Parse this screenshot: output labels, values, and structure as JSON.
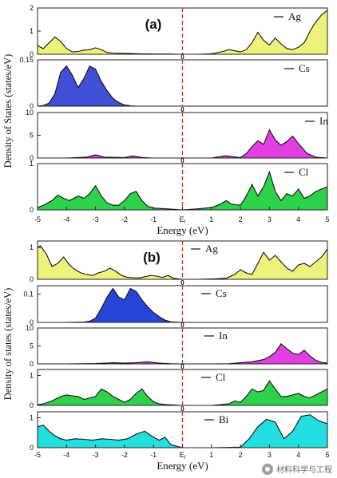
{
  "chart_data": [
    {
      "type": "area",
      "figure_label": "(a)",
      "ylabel": "Density of States (states/eV)",
      "xlabel": "Energy (eV)",
      "xlim": [
        -5,
        5
      ],
      "x_ticks": [
        "-5",
        "-4",
        "-3",
        "-2",
        "-1",
        "Ef",
        "1",
        "2",
        "3",
        "4",
        "5"
      ],
      "fermi_label": "0",
      "panels": [
        {
          "name": "Ag",
          "color": "#eef27a",
          "ylim": [
            0,
            2
          ],
          "y_ticks": [
            "0",
            "1",
            "2"
          ],
          "x": [
            -5.0,
            -4.9,
            -4.8,
            -4.6,
            -4.4,
            -4.2,
            -4.0,
            -3.8,
            -3.6,
            -3.4,
            -3.2,
            -3.0,
            -2.8,
            -2.6,
            -2.4,
            -2.0,
            -1.5,
            -1.0,
            -0.5,
            0.0,
            0.5,
            1.0,
            1.4,
            1.6,
            1.8,
            2.0,
            2.2,
            2.4,
            2.6,
            2.8,
            3.0,
            3.2,
            3.4,
            3.6,
            3.8,
            4.0,
            4.2,
            4.4,
            4.6,
            4.8,
            5.0
          ],
          "y": [
            0.4,
            0.3,
            0.25,
            0.5,
            0.75,
            0.55,
            0.25,
            0.1,
            0.12,
            0.18,
            0.2,
            0.28,
            0.2,
            0.08,
            0.05,
            0.04,
            0.02,
            0.01,
            0.01,
            0.0,
            0.0,
            0.02,
            0.12,
            0.2,
            0.15,
            0.1,
            0.2,
            0.5,
            0.95,
            0.6,
            0.4,
            0.7,
            0.45,
            0.25,
            0.2,
            0.3,
            0.5,
            1.0,
            1.4,
            1.7,
            1.9
          ]
        },
        {
          "name": "Cs",
          "color": "#3f4fd6",
          "ylim": [
            0,
            0.15
          ],
          "y_ticks": [
            "0",
            "0.15"
          ],
          "x": [
            -5.0,
            -4.8,
            -4.6,
            -4.4,
            -4.2,
            -4.0,
            -3.8,
            -3.6,
            -3.4,
            -3.2,
            -3.0,
            -2.8,
            -2.6,
            -2.4,
            -2.2,
            -2.0,
            -1.8,
            -1.6,
            -1.0,
            0.0,
            1.0,
            2.0,
            3.0,
            4.0,
            5.0
          ],
          "y": [
            0.0,
            0.002,
            0.01,
            0.04,
            0.11,
            0.13,
            0.1,
            0.06,
            0.09,
            0.13,
            0.12,
            0.08,
            0.05,
            0.025,
            0.012,
            0.004,
            0.001,
            0.0,
            0.0,
            0.0,
            0.0,
            0.0,
            0.0,
            0.0,
            0.0
          ]
        },
        {
          "name": "In",
          "color": "#e23ee2",
          "ylim": [
            0,
            10
          ],
          "y_ticks": [
            "0",
            "5",
            "10"
          ],
          "x": [
            -5.0,
            -4.0,
            -3.3,
            -3.0,
            -2.7,
            -2.0,
            -1.7,
            -1.4,
            -1.0,
            0.0,
            1.0,
            1.3,
            1.5,
            1.7,
            2.0,
            2.2,
            2.4,
            2.6,
            2.8,
            3.0,
            3.2,
            3.4,
            3.6,
            3.8,
            4.0,
            4.3,
            4.6,
            5.0
          ],
          "y": [
            0.0,
            0.0,
            0.2,
            0.7,
            0.2,
            0.1,
            0.45,
            0.1,
            0.0,
            0.0,
            0.0,
            0.3,
            0.5,
            0.3,
            0.1,
            1.0,
            2.5,
            3.8,
            3.0,
            6.2,
            4.0,
            2.8,
            3.6,
            4.8,
            3.2,
            1.0,
            0.2,
            0.0
          ]
        },
        {
          "name": "Cl",
          "color": "#2ed24a",
          "ylim": [
            0,
            1
          ],
          "y_ticks": [
            "0",
            "1"
          ],
          "x": [
            -5.0,
            -4.8,
            -4.5,
            -4.3,
            -4.1,
            -3.9,
            -3.6,
            -3.4,
            -3.2,
            -3.0,
            -2.8,
            -2.6,
            -2.4,
            -2.2,
            -2.0,
            -1.8,
            -1.6,
            -1.4,
            -1.2,
            -1.0,
            -0.5,
            0.0,
            0.5,
            1.0,
            1.3,
            1.5,
            1.7,
            2.0,
            2.2,
            2.4,
            2.6,
            2.8,
            3.0,
            3.2,
            3.4,
            3.6,
            3.8,
            4.0,
            4.2,
            4.4,
            4.6,
            4.8,
            5.0
          ],
          "y": [
            0.05,
            0.1,
            0.2,
            0.32,
            0.25,
            0.2,
            0.3,
            0.25,
            0.35,
            0.52,
            0.3,
            0.15,
            0.1,
            0.1,
            0.2,
            0.35,
            0.4,
            0.2,
            0.08,
            0.04,
            0.02,
            0.0,
            0.02,
            0.05,
            0.12,
            0.2,
            0.12,
            0.1,
            0.3,
            0.55,
            0.3,
            0.5,
            0.82,
            0.4,
            0.2,
            0.35,
            0.3,
            0.45,
            0.25,
            0.3,
            0.4,
            0.45,
            0.5
          ]
        }
      ]
    },
    {
      "type": "area",
      "figure_label": "(b)",
      "ylabel": "Density of states (states/eV)",
      "xlabel": "Energy (eV)",
      "xlim": [
        -5,
        5
      ],
      "x_ticks": [
        "-5",
        "-4",
        "-3",
        "-2",
        "-1",
        "Ef",
        "1",
        "2",
        "3",
        "4",
        "5"
      ],
      "fermi_label": "0",
      "panels": [
        {
          "name": "Ag",
          "color": "#eef27a",
          "ylim": [
            0,
            1.2
          ],
          "y_ticks": [
            "0",
            "1"
          ],
          "x": [
            -5.0,
            -4.9,
            -4.7,
            -4.5,
            -4.3,
            -4.1,
            -3.9,
            -3.7,
            -3.5,
            -3.3,
            -3.1,
            -2.9,
            -2.7,
            -2.5,
            -2.3,
            -2.1,
            -1.9,
            -1.7,
            -1.5,
            -1.3,
            -1.1,
            -0.9,
            -0.7,
            -0.5,
            -0.3,
            0.0,
            0.5,
            1.0,
            1.5,
            1.8,
            2.0,
            2.2,
            2.4,
            2.6,
            2.8,
            3.0,
            3.2,
            3.4,
            3.6,
            3.8,
            4.0,
            4.2,
            4.4,
            4.6,
            4.8,
            5.0
          ],
          "y": [
            1.0,
            1.05,
            0.8,
            0.4,
            0.5,
            0.7,
            0.45,
            0.3,
            0.2,
            0.15,
            0.12,
            0.2,
            0.25,
            0.35,
            0.25,
            0.12,
            0.06,
            0.05,
            0.04,
            0.08,
            0.12,
            0.1,
            0.06,
            0.12,
            0.03,
            0.0,
            0.0,
            0.01,
            0.03,
            0.15,
            0.3,
            0.2,
            0.15,
            0.5,
            0.85,
            0.6,
            0.75,
            0.55,
            0.35,
            0.25,
            0.45,
            0.5,
            0.4,
            0.55,
            0.7,
            0.95
          ]
        },
        {
          "name": "Cs",
          "color": "#2445d6",
          "ylim": [
            0,
            0.13
          ],
          "y_ticks": [
            "0",
            "0.1"
          ],
          "x": [
            -5.0,
            -4.0,
            -3.4,
            -3.2,
            -3.0,
            -2.8,
            -2.6,
            -2.4,
            -2.2,
            -2.0,
            -1.8,
            -1.6,
            -1.4,
            -1.2,
            -1.0,
            -0.8,
            -0.6,
            -0.4,
            0.0,
            1.0,
            2.0,
            3.0,
            4.0,
            5.0
          ],
          "y": [
            0.0,
            0.0,
            0.001,
            0.004,
            0.015,
            0.05,
            0.09,
            0.12,
            0.09,
            0.08,
            0.12,
            0.11,
            0.08,
            0.055,
            0.035,
            0.02,
            0.008,
            0.002,
            0.0,
            0.0,
            0.0,
            0.0,
            0.0,
            0.0
          ]
        },
        {
          "name": "In",
          "color": "#e23ee2",
          "ylim": [
            0,
            10
          ],
          "y_ticks": [
            "0",
            "5",
            "10"
          ],
          "x": [
            -5.0,
            -4.0,
            -3.0,
            -2.4,
            -2.0,
            -1.6,
            -1.2,
            -0.8,
            -0.4,
            0.0,
            1.0,
            1.6,
            2.0,
            2.4,
            2.8,
            3.0,
            3.2,
            3.4,
            3.6,
            3.8,
            4.0,
            4.2,
            4.4,
            4.6,
            4.8,
            5.0
          ],
          "y": [
            0.0,
            0.0,
            0.1,
            0.3,
            0.2,
            0.3,
            0.6,
            0.2,
            0.05,
            0.0,
            0.0,
            0.05,
            0.3,
            0.6,
            1.2,
            2.0,
            3.2,
            5.6,
            4.2,
            3.0,
            2.6,
            3.8,
            2.2,
            1.0,
            0.4,
            0.2
          ]
        },
        {
          "name": "Cl",
          "color": "#2ed24a",
          "ylim": [
            0,
            1.2
          ],
          "y_ticks": [
            "0",
            "1"
          ],
          "x": [
            -5.0,
            -4.8,
            -4.5,
            -4.2,
            -4.0,
            -3.8,
            -3.6,
            -3.4,
            -3.2,
            -3.0,
            -2.8,
            -2.6,
            -2.4,
            -2.2,
            -2.0,
            -1.8,
            -1.6,
            -1.4,
            -1.2,
            -1.0,
            -0.8,
            -0.6,
            -0.4,
            0.0,
            1.0,
            1.6,
            1.8,
            2.0,
            2.2,
            2.4,
            2.6,
            2.8,
            3.0,
            3.2,
            3.4,
            3.6,
            3.8,
            4.0,
            4.2,
            4.4,
            4.6,
            4.8,
            5.0
          ],
          "y": [
            0.02,
            0.05,
            0.15,
            0.3,
            0.35,
            0.32,
            0.3,
            0.2,
            0.25,
            0.3,
            0.55,
            0.45,
            0.3,
            0.2,
            0.1,
            0.2,
            0.4,
            0.55,
            0.3,
            0.12,
            0.05,
            0.03,
            0.02,
            0.0,
            0.0,
            0.05,
            0.15,
            0.1,
            0.3,
            0.55,
            0.45,
            0.5,
            0.82,
            0.55,
            0.3,
            0.3,
            0.35,
            0.4,
            0.3,
            0.25,
            0.35,
            0.45,
            0.55
          ]
        },
        {
          "name": "Bi",
          "color": "#22dede",
          "ylim": [
            0,
            1.2
          ],
          "y_ticks": [
            "0",
            "1"
          ],
          "x": [
            -5.0,
            -4.8,
            -4.6,
            -4.4,
            -4.2,
            -4.0,
            -3.7,
            -3.4,
            -3.1,
            -2.8,
            -2.5,
            -2.2,
            -1.9,
            -1.6,
            -1.3,
            -1.0,
            -0.8,
            -0.6,
            -0.4,
            0.0,
            1.0,
            2.0,
            2.3,
            2.6,
            2.9,
            3.2,
            3.5,
            3.8,
            4.1,
            4.4,
            4.7,
            5.0
          ],
          "y": [
            0.7,
            0.75,
            0.55,
            0.4,
            0.3,
            0.25,
            0.3,
            0.28,
            0.25,
            0.3,
            0.28,
            0.25,
            0.3,
            0.45,
            0.55,
            0.35,
            0.25,
            0.35,
            0.1,
            0.0,
            0.0,
            0.02,
            0.3,
            0.7,
            0.95,
            0.85,
            0.3,
            0.55,
            1.05,
            1.1,
            0.9,
            0.8
          ]
        }
      ]
    }
  ],
  "watermark": "材料科学与工程"
}
